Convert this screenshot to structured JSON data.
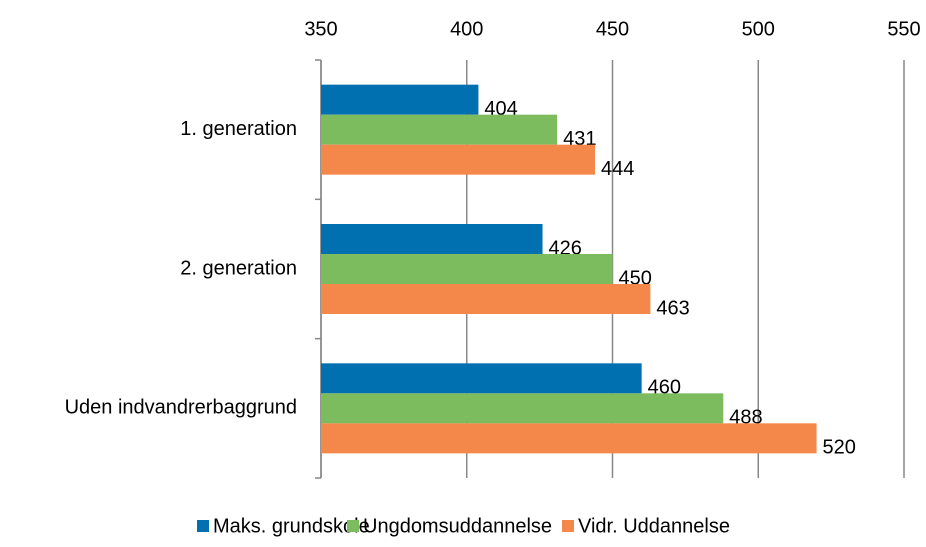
{
  "chart_data": {
    "type": "bar",
    "orientation": "horizontal",
    "categories": [
      "1. generation",
      "2. generation",
      "Uden indvandrerbaggrund"
    ],
    "series": [
      {
        "name": "Maks. grundskole",
        "color": "#0070b0",
        "values": [
          404,
          426,
          460
        ]
      },
      {
        "name": "Ungdomsuddannelse",
        "color": "#7dbb5f",
        "values": [
          431,
          450,
          488
        ]
      },
      {
        "name": "Vidr. Uddannelse",
        "color": "#f4874a",
        "values": [
          444,
          463,
          520
        ]
      }
    ],
    "xlim": [
      350,
      550
    ],
    "xticks": [
      350,
      400,
      450,
      500,
      550
    ],
    "grid": true,
    "legend": "bottom"
  }
}
